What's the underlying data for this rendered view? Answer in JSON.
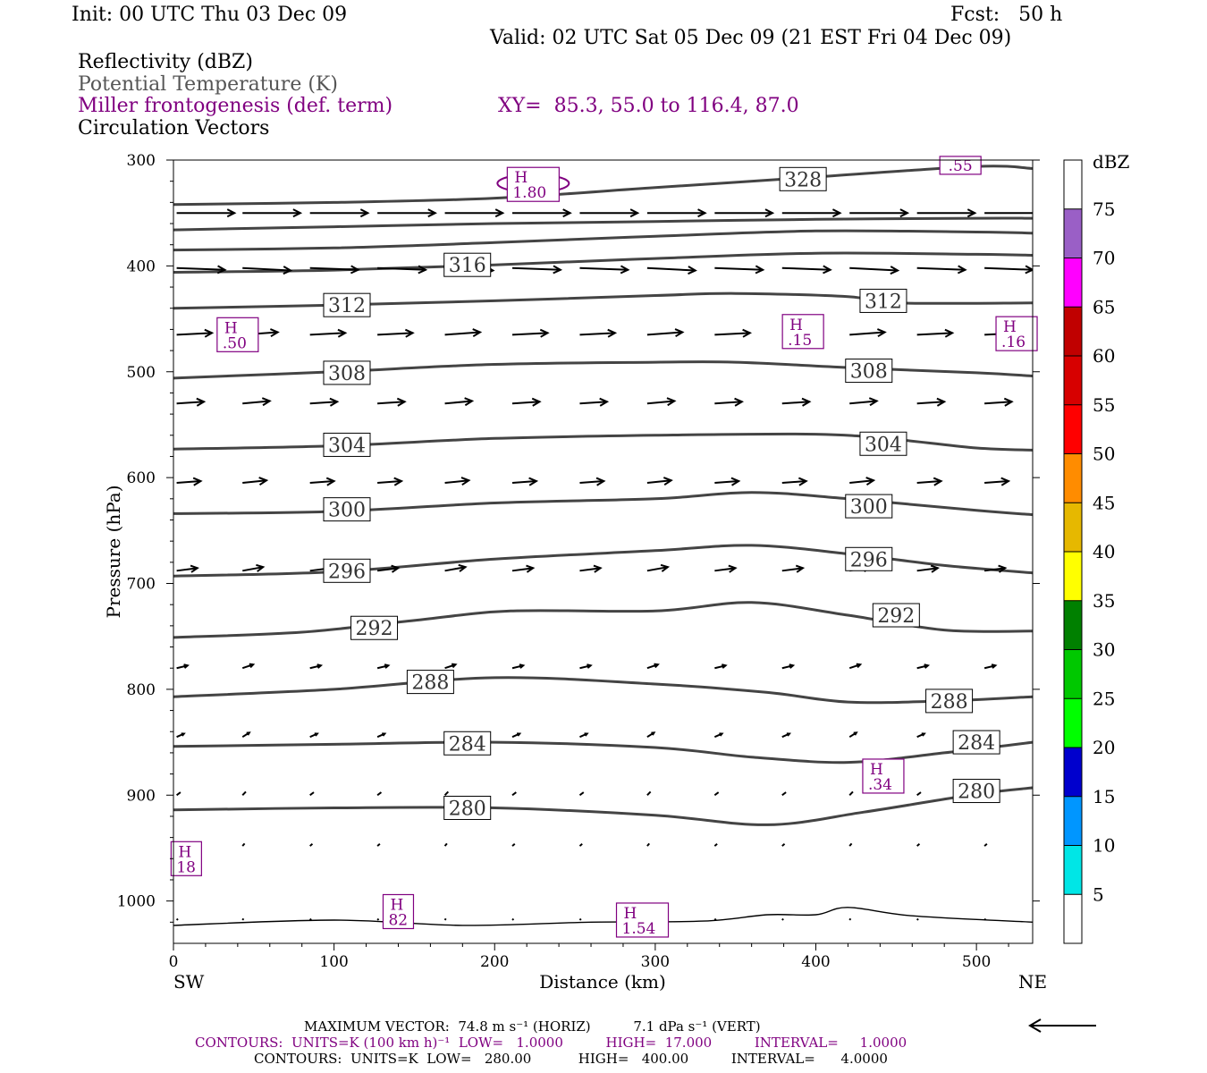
{
  "header": {
    "init": "Init: 00 UTC Thu 03 Dec 09",
    "fcst": "Fcst:   50 h",
    "valid": "Valid: 02 UTC Sat 05 Dec 09 (21 EST Fri 04 Dec 09)"
  },
  "fields": {
    "reflectivity": "Reflectivity (dBZ)",
    "theta": "Potential Temperature (K)",
    "miller": "Miller frontogenesis (def. term)",
    "xy": "XY=  85.3, 55.0 to 116.4, 87.0",
    "vectors": "Circulation Vectors"
  },
  "colors": {
    "theta_contour": "#444444",
    "frontogenesis": "#800080",
    "vector": "#000000"
  },
  "colorbar": {
    "title": "dBZ",
    "labels": [
      "5",
      "10",
      "15",
      "20",
      "25",
      "30",
      "35",
      "40",
      "45",
      "50",
      "55",
      "60",
      "65",
      "70",
      "75"
    ],
    "colors": [
      "#ffffff",
      "#00e6e6",
      "#0096ff",
      "#0000cd",
      "#00ff00",
      "#00c800",
      "#008000",
      "#ffff00",
      "#e6b800",
      "#ff8c00",
      "#ff0000",
      "#d70000",
      "#c00000",
      "#ff00ff",
      "#9a5fc6",
      "#ffffff"
    ]
  },
  "footer": {
    "max_vector": "MAXIMUM VECTOR:  74.8 m s⁻¹ (HORIZ)          7.1 dPa s⁻¹ (VERT)",
    "contours1": "CONTOURS:  UNITS=K (100 km h)⁻¹  LOW=   1.0000          HIGH=  17.000          INTERVAL=     1.0000",
    "contours2": "CONTOURS:  UNITS=K  LOW=   280.00           HIGH=   400.00          INTERVAL=      4.0000"
  },
  "chart_data": {
    "type": "line",
    "xlabel": "Distance (km)",
    "ylabel": "Pressure (hPa)",
    "xlim": [
      0,
      535
    ],
    "ylim": [
      1040,
      300
    ],
    "x_ticks": [
      0,
      100,
      200,
      300,
      400,
      500
    ],
    "y_ticks": [
      300,
      400,
      500,
      600,
      700,
      800,
      900,
      1000
    ],
    "x_end_labels": [
      "SW",
      "NE"
    ],
    "theta_contours": [
      {
        "level": "328",
        "points": [
          [
            0,
            342
          ],
          [
            100,
            340
          ],
          [
            200,
            336
          ],
          [
            300,
            326
          ],
          [
            400,
            316
          ],
          [
            500,
            306
          ],
          [
            535,
            308
          ]
        ],
        "labels": [
          [
            392,
            318
          ]
        ]
      },
      {
        "level": "324",
        "points": [
          [
            0,
            366
          ],
          [
            100,
            363
          ],
          [
            200,
            360
          ],
          [
            300,
            358
          ],
          [
            400,
            356
          ],
          [
            500,
            355
          ],
          [
            535,
            355
          ]
        ],
        "labels": []
      },
      {
        "level": "320",
        "points": [
          [
            0,
            385
          ],
          [
            100,
            383
          ],
          [
            200,
            378
          ],
          [
            300,
            372
          ],
          [
            400,
            367
          ],
          [
            500,
            368
          ],
          [
            535,
            369
          ]
        ],
        "labels": []
      },
      {
        "level": "316",
        "points": [
          [
            0,
            406
          ],
          [
            100,
            404
          ],
          [
            200,
            399
          ],
          [
            300,
            393
          ],
          [
            400,
            388
          ],
          [
            500,
            389
          ],
          [
            535,
            390
          ]
        ],
        "labels": [
          [
            183,
            399
          ]
        ]
      },
      {
        "level": "312",
        "points": [
          [
            0,
            440
          ],
          [
            100,
            437
          ],
          [
            200,
            433
          ],
          [
            300,
            428
          ],
          [
            350,
            426
          ],
          [
            420,
            429
          ],
          [
            450,
            435
          ],
          [
            535,
            435
          ]
        ],
        "labels": [
          [
            108,
            437
          ],
          [
            442,
            433
          ]
        ]
      },
      {
        "level": "308",
        "points": [
          [
            0,
            506
          ],
          [
            100,
            500
          ],
          [
            200,
            493
          ],
          [
            300,
            491
          ],
          [
            350,
            491
          ],
          [
            420,
            496
          ],
          [
            500,
            501
          ],
          [
            535,
            504
          ]
        ],
        "labels": [
          [
            108,
            501
          ],
          [
            433,
            499
          ]
        ]
      },
      {
        "level": "304",
        "points": [
          [
            0,
            573
          ],
          [
            100,
            570
          ],
          [
            200,
            563
          ],
          [
            300,
            560
          ],
          [
            400,
            559
          ],
          [
            450,
            564
          ],
          [
            500,
            572
          ],
          [
            535,
            574
          ]
        ],
        "labels": [
          [
            108,
            569
          ],
          [
            442,
            568
          ]
        ]
      },
      {
        "level": "300",
        "points": [
          [
            0,
            634
          ],
          [
            100,
            632
          ],
          [
            200,
            624
          ],
          [
            300,
            620
          ],
          [
            360,
            614
          ],
          [
            420,
            620
          ],
          [
            500,
            631
          ],
          [
            535,
            635
          ]
        ],
        "labels": [
          [
            108,
            630
          ],
          [
            433,
            627
          ]
        ]
      },
      {
        "level": "296",
        "points": [
          [
            0,
            693
          ],
          [
            100,
            689
          ],
          [
            200,
            677
          ],
          [
            300,
            669
          ],
          [
            360,
            664
          ],
          [
            420,
            672
          ],
          [
            480,
            683
          ],
          [
            535,
            690
          ]
        ],
        "labels": [
          [
            108,
            688
          ],
          [
            433,
            677
          ]
        ]
      },
      {
        "level": "292",
        "points": [
          [
            0,
            751
          ],
          [
            80,
            746
          ],
          [
            150,
            735
          ],
          [
            210,
            726
          ],
          [
            300,
            726
          ],
          [
            360,
            718
          ],
          [
            420,
            730
          ],
          [
            480,
            744
          ],
          [
            535,
            745
          ]
        ],
        "labels": [
          [
            125,
            742
          ],
          [
            450,
            730
          ]
        ]
      },
      {
        "level": "288",
        "points": [
          [
            0,
            807
          ],
          [
            100,
            800
          ],
          [
            200,
            789
          ],
          [
            300,
            795
          ],
          [
            370,
            803
          ],
          [
            420,
            812
          ],
          [
            480,
            811
          ],
          [
            535,
            807
          ]
        ],
        "labels": [
          [
            160,
            793
          ],
          [
            483,
            811
          ]
        ]
      },
      {
        "level": "284",
        "points": [
          [
            0,
            854
          ],
          [
            100,
            852
          ],
          [
            200,
            850
          ],
          [
            300,
            855
          ],
          [
            360,
            864
          ],
          [
            420,
            869
          ],
          [
            480,
            860
          ],
          [
            535,
            850
          ]
        ],
        "labels": [
          [
            183,
            851
          ],
          [
            500,
            850
          ]
        ]
      },
      {
        "level": "280",
        "points": [
          [
            0,
            914
          ],
          [
            100,
            912
          ],
          [
            200,
            912
          ],
          [
            300,
            919
          ],
          [
            370,
            928
          ],
          [
            430,
            916
          ],
          [
            500,
            899
          ],
          [
            535,
            893
          ]
        ],
        "labels": [
          [
            183,
            912
          ],
          [
            500,
            896
          ]
        ]
      },
      {
        "level": "",
        "points": [
          [
            0,
            1023
          ],
          [
            100,
            1018
          ],
          [
            180,
            1023
          ],
          [
            260,
            1020
          ],
          [
            330,
            1019
          ],
          [
            370,
            1013
          ],
          [
            400,
            1013
          ],
          [
            420,
            1006
          ],
          [
            460,
            1014
          ],
          [
            535,
            1020
          ]
        ],
        "labels": []
      }
    ],
    "frontogenesis_maxima": [
      {
        "label": "H",
        "value": "1.80",
        "x": 224,
        "y": 323
      },
      {
        "label": "H",
        "value": ".50",
        "x": 40,
        "y": 465
      },
      {
        "label": "H",
        "value": ".15",
        "x": 392,
        "y": 462
      },
      {
        "label": "H",
        "value": ".16",
        "x": 525,
        "y": 464
      },
      {
        "label": "H",
        "value": ".34",
        "x": 442,
        "y": 882
      },
      {
        "label": "H",
        "value": "18",
        "x": 8,
        "y": 960
      },
      {
        "label": "H",
        "value": "82",
        "x": 140,
        "y": 1010
      },
      {
        "label": "H",
        "value": "1.54",
        "x": 292,
        "y": 1018
      },
      {
        "label": "",
        "value": ".55",
        "x": 490,
        "y": 305
      }
    ],
    "circulation_vector_rows": [
      {
        "p": 350,
        "length_km": 36,
        "pitch": 0
      },
      {
        "p": 402,
        "length_km": 30,
        "pitch": 2
      },
      {
        "p": 465,
        "length_km": 22,
        "pitch": -2
      },
      {
        "p": 530,
        "length_km": 17,
        "pitch": -2
      },
      {
        "p": 605,
        "length_km": 15,
        "pitch": -2
      },
      {
        "p": 688,
        "length_km": 13,
        "pitch": -3
      },
      {
        "p": 780,
        "length_km": 7,
        "pitch": -3
      },
      {
        "p": 845,
        "length_km": 5,
        "pitch": -4
      },
      {
        "p": 900,
        "length_km": 3,
        "pitch": -4
      },
      {
        "p": 948,
        "length_km": 2,
        "pitch": -3
      },
      {
        "p": 1018,
        "length_km": 1,
        "pitch": -2
      }
    ],
    "vector_x_positions": [
      2,
      43,
      85,
      127,
      169,
      211,
      253,
      295,
      337,
      379,
      421,
      463,
      505
    ]
  }
}
